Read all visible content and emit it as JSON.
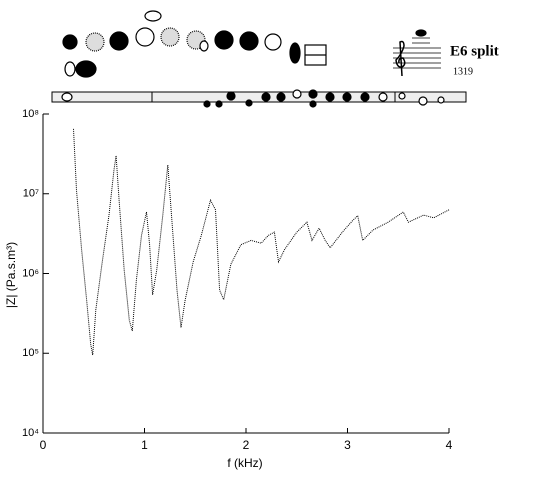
{
  "chart_data": {
    "type": "line",
    "fingering_note": "E6 split",
    "fingering_id": "1319",
    "x_label": "f (kHz)",
    "y_label": "|Z| (Pa.s.m³)",
    "log_y": true,
    "color": "#000000",
    "xlim": [
      0,
      4
    ],
    "xticks": [
      0,
      1,
      2,
      3,
      4
    ],
    "ylim": [
      10000,
      100000000
    ],
    "yticks": [
      {
        "value": 10000,
        "label": "10⁴"
      },
      {
        "value": 100000,
        "label": "10⁵"
      },
      {
        "value": 1000000,
        "label": "10⁶"
      },
      {
        "value": 10000000,
        "label": "10⁷"
      },
      {
        "value": 100000000,
        "label": "10⁸"
      }
    ],
    "x": [
      0.3,
      0.33,
      0.38,
      0.43,
      0.47,
      0.49,
      0.52,
      0.58,
      0.65,
      0.7,
      0.72,
      0.75,
      0.8,
      0.85,
      0.88,
      0.92,
      0.97,
      1.02,
      1.05,
      1.08,
      1.12,
      1.18,
      1.23,
      1.27,
      1.32,
      1.36,
      1.4,
      1.48,
      1.56,
      1.65,
      1.7,
      1.74,
      1.78,
      1.85,
      1.95,
      2.05,
      2.15,
      2.22,
      2.28,
      2.32,
      2.38,
      2.5,
      2.6,
      2.65,
      2.72,
      2.78,
      2.83,
      2.95,
      3.05,
      3.1,
      3.15,
      3.25,
      3.4,
      3.55,
      3.6,
      3.75,
      3.85,
      4.0
    ],
    "values": [
      65000000,
      11000000,
      2000000,
      470000,
      130000,
      95000,
      350000,
      1300000,
      5400000,
      20000000,
      30000000,
      8300000,
      1100000,
      260000,
      190000,
      830000,
      3000000,
      5900000,
      2300000,
      540000,
      1100000,
      5400000,
      23000000,
      4600000,
      620000,
      210000,
      460000,
      1400000,
      3000000,
      8300000,
      6300000,
      620000,
      470000,
      1300000,
      2300000,
      2600000,
      2400000,
      3000000,
      3300000,
      1400000,
      2000000,
      3300000,
      4400000,
      2600000,
      3700000,
      2600000,
      2100000,
      3300000,
      4600000,
      5300000,
      2600000,
      3500000,
      4400000,
      5900000,
      4400000,
      5400000,
      5000000,
      6300000
    ]
  }
}
